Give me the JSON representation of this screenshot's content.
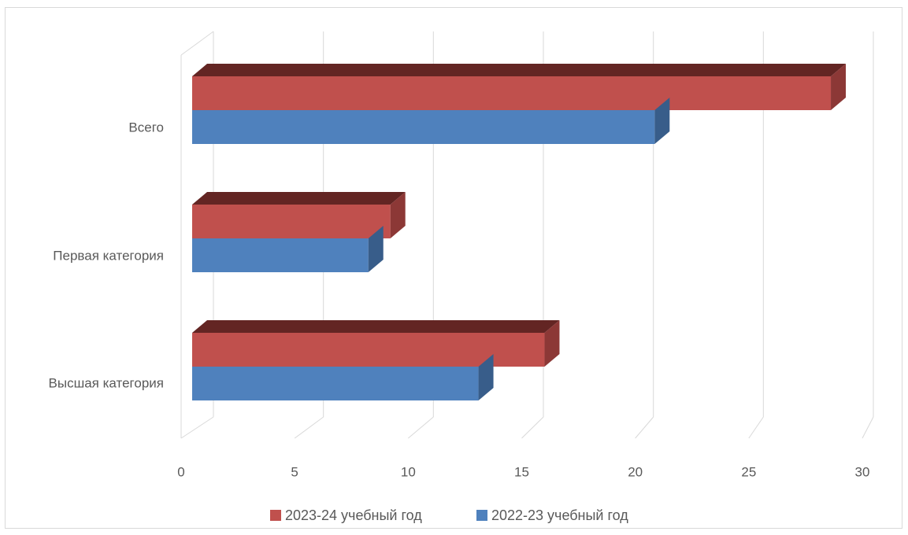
{
  "chart_data": {
    "type": "bar",
    "orientation": "horizontal",
    "style": "3d-clustered",
    "categories": [
      "Высшая категория",
      "Первая категория",
      "Всего"
    ],
    "series": [
      {
        "name": "2023-24 учебный год",
        "values": [
          16,
          9,
          29
        ],
        "color": "#c0504d",
        "top_color": "#632523",
        "side_color": "#8c3836"
      },
      {
        "name": "2022-23 учебный год",
        "values": [
          13,
          8,
          21
        ],
        "color": "#4f81bd",
        "side_color": "#385d8a"
      }
    ],
    "xlim": [
      0,
      30
    ],
    "x_ticks": [
      0,
      5,
      10,
      15,
      20,
      25,
      30
    ],
    "grid": true,
    "legend_position": "bottom",
    "title": "",
    "xlabel": "",
    "ylabel": ""
  },
  "colors": {
    "gridline": "#d9d9d9",
    "axis_text": "#595959",
    "frame_border": "#d9d9d9"
  }
}
